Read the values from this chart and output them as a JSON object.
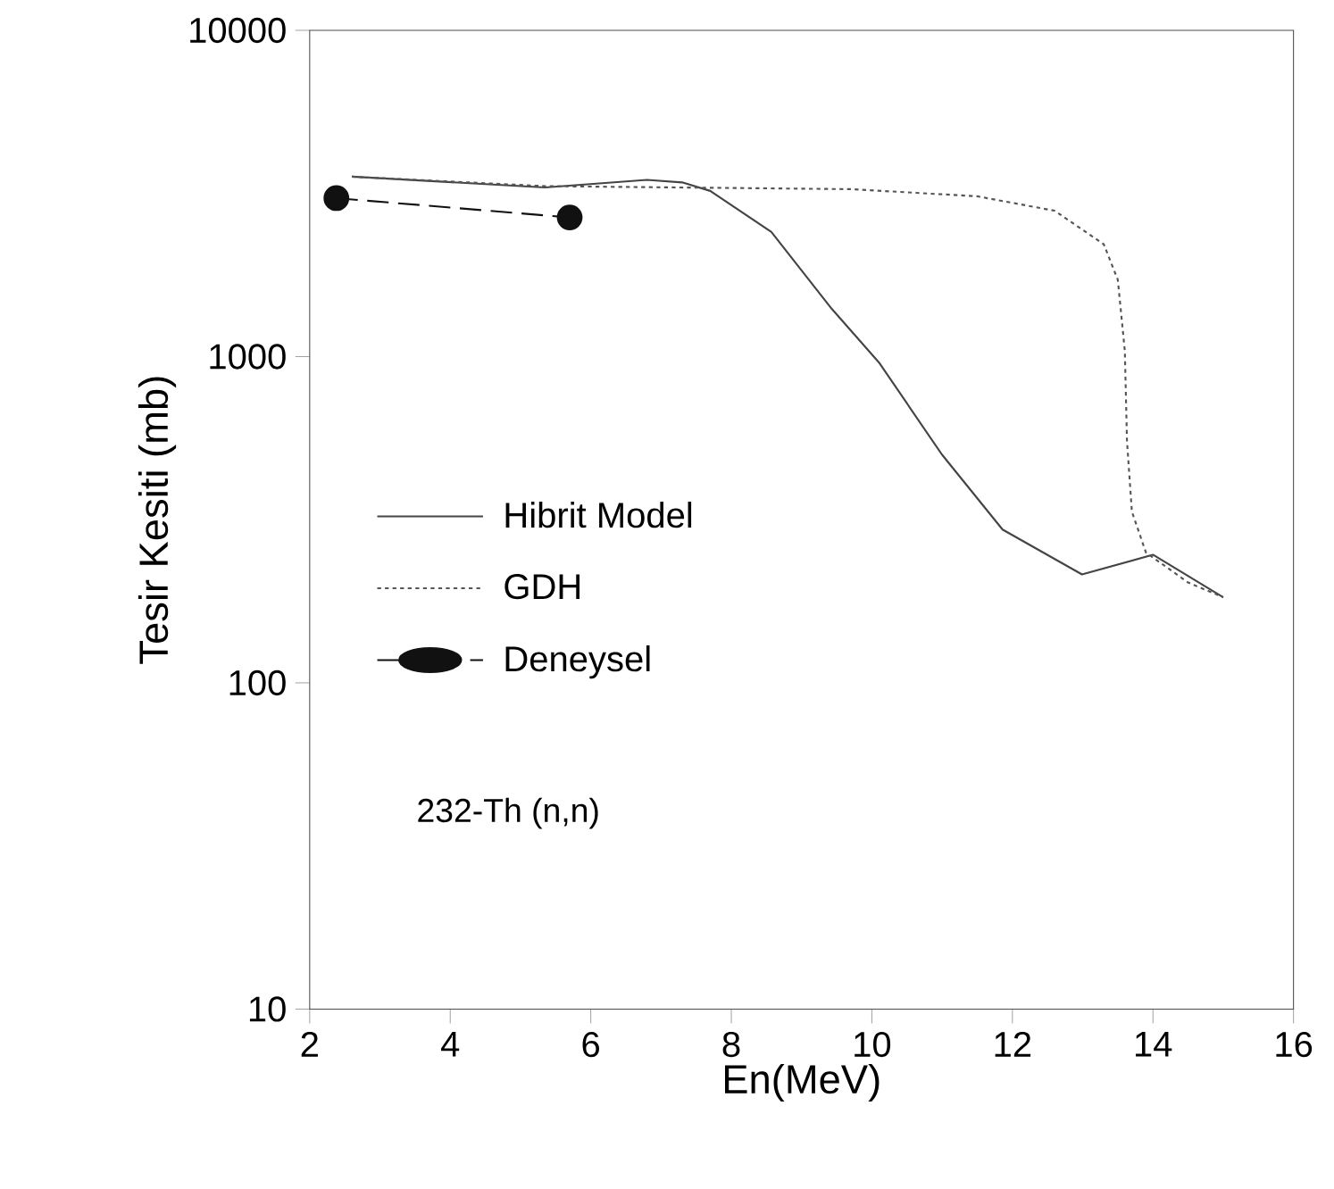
{
  "chart_data": {
    "type": "line",
    "xlabel": "En(MeV)",
    "ylabel": "Tesir Kesiti (mb)",
    "log": "y",
    "xlim": [
      2,
      16
    ],
    "ylim": [
      10,
      10000
    ],
    "xticks": [
      2,
      4,
      6,
      8,
      10,
      12,
      14,
      16
    ],
    "yticks": [
      10,
      100,
      1000,
      10000
    ],
    "grid": false,
    "legend": "left",
    "annotations": [
      "232-Th (n,n)"
    ],
    "series": [
      {
        "name": "Hibrit Model",
        "color": "#444444",
        "line_style": "solid",
        "marker": "none",
        "x": [
          2.6,
          5.35,
          6.8,
          7.3,
          7.7,
          8.57,
          9.43,
          10.1,
          11.0,
          11.86,
          12.99,
          14.0,
          15.0
        ],
        "values": [
          3560,
          3300,
          3480,
          3420,
          3220,
          2410,
          1400,
          960,
          500,
          295,
          215,
          247,
          183
        ]
      },
      {
        "name": "GDH",
        "color": "#555555",
        "line_style": "dotted",
        "marker": "none",
        "x": [
          2.6,
          5.35,
          9.7,
          11.5,
          12.6,
          13.3,
          13.5,
          13.6,
          13.63,
          13.7,
          13.9,
          14.5,
          15.0
        ],
        "values": [
          3560,
          3330,
          3260,
          3100,
          2800,
          2210,
          1720,
          1040,
          553,
          335,
          251,
          203,
          183
        ]
      },
      {
        "name": "Deneysel",
        "color": "#111111",
        "line_style": "dashed",
        "marker": "circle",
        "x": [
          2.38,
          5.7
        ],
        "values": [
          3060,
          2670
        ]
      }
    ]
  }
}
